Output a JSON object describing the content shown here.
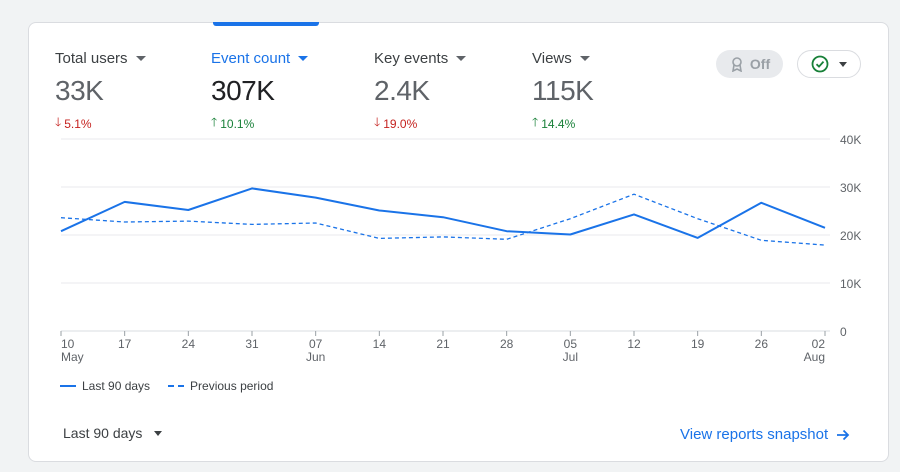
{
  "metrics": [
    {
      "label": "Total users",
      "value": "33K",
      "delta": "5.1%",
      "direction": "down"
    },
    {
      "label": "Event count",
      "value": "307K",
      "delta": "10.1%",
      "direction": "up"
    },
    {
      "label": "Key events",
      "value": "2.4K",
      "delta": "19.0%",
      "direction": "down"
    },
    {
      "label": "Views",
      "value": "115K",
      "delta": "14.4%",
      "direction": "up"
    }
  ],
  "controls": {
    "comparison_toggle_label": "Off",
    "status_icon": "check-circle-icon"
  },
  "chart_data": {
    "type": "line",
    "x_tick_labels": [
      {
        "day": "10",
        "month": "May"
      },
      {
        "day": "17",
        "month": ""
      },
      {
        "day": "24",
        "month": ""
      },
      {
        "day": "31",
        "month": ""
      },
      {
        "day": "07",
        "month": "Jun"
      },
      {
        "day": "14",
        "month": ""
      },
      {
        "day": "21",
        "month": ""
      },
      {
        "day": "28",
        "month": ""
      },
      {
        "day": "05",
        "month": "Jul"
      },
      {
        "day": "12",
        "month": ""
      },
      {
        "day": "19",
        "month": ""
      },
      {
        "day": "26",
        "month": ""
      },
      {
        "day": "02",
        "month": "Aug"
      }
    ],
    "y_tick_labels": [
      "40K",
      "30K",
      "20K",
      "10K",
      "0"
    ],
    "ylim": [
      0,
      40000
    ],
    "grid": true,
    "legend_position": "bottom-left",
    "series": [
      {
        "name": "Last 90 days",
        "style": "solid",
        "color": "#1a73e8",
        "values": [
          20800,
          26900,
          25200,
          29700,
          27800,
          25100,
          23700,
          20800,
          20100,
          24300,
          19400,
          26700,
          21500
        ]
      },
      {
        "name": "Previous period",
        "style": "dashed",
        "color": "#1a73e8",
        "values": [
          23600,
          22700,
          22900,
          22200,
          22500,
          19300,
          19600,
          19100,
          23400,
          28500,
          23400,
          18900,
          17900
        ]
      }
    ]
  },
  "footer": {
    "date_range_label": "Last 90 days",
    "view_link_label": "View reports snapshot"
  }
}
